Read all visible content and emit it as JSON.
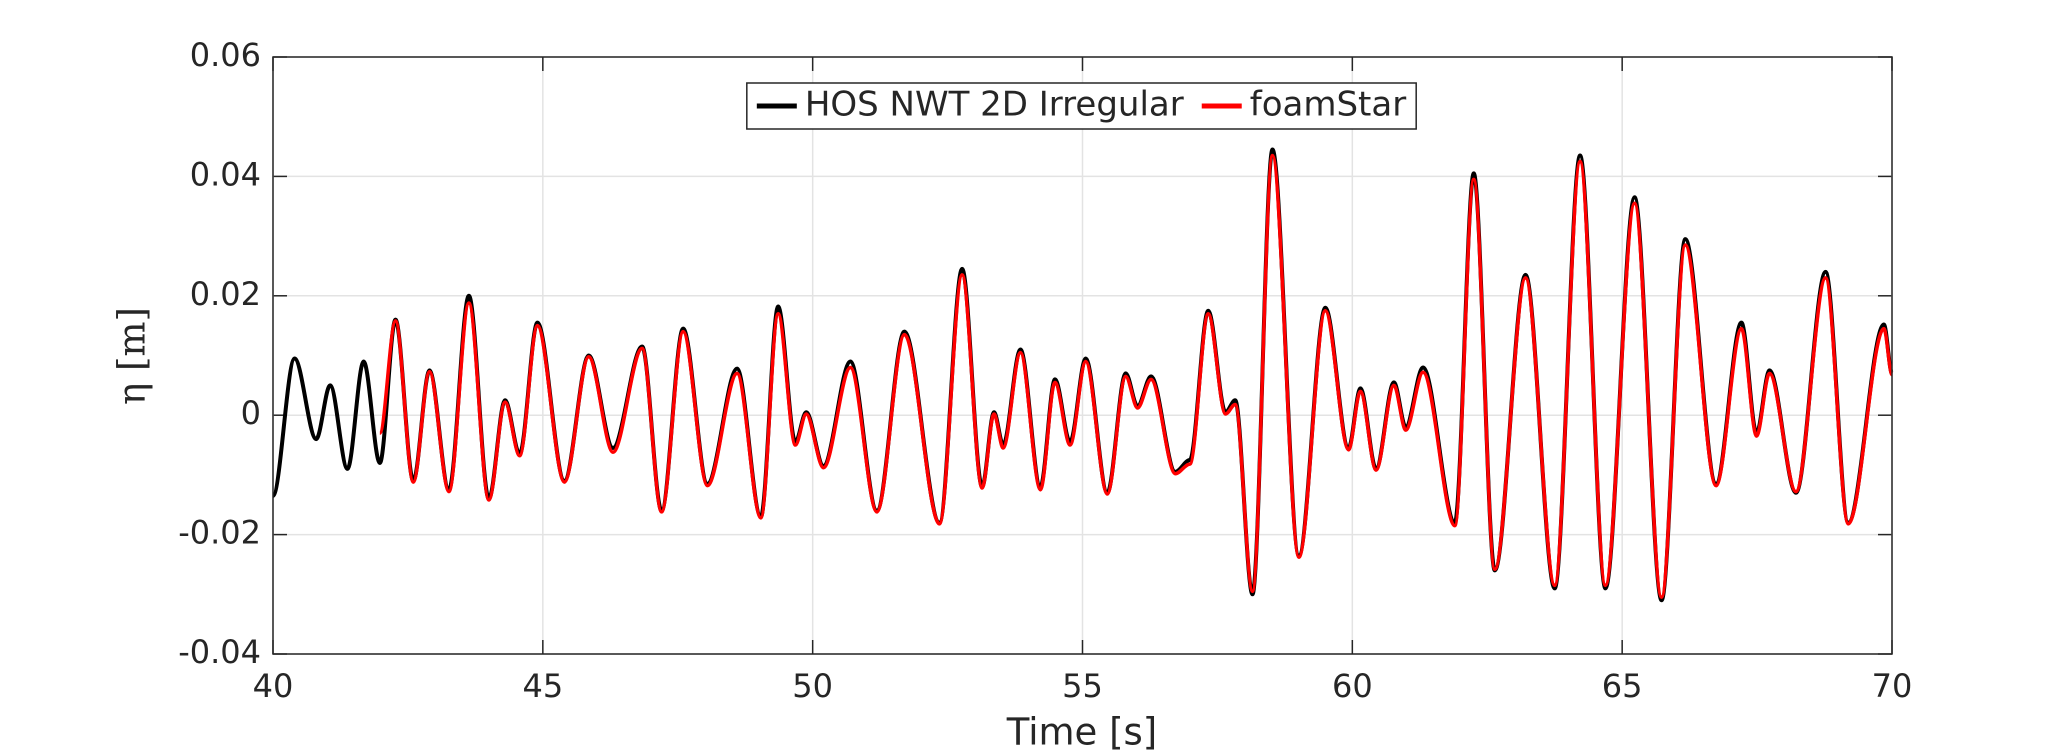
{
  "chart_data": {
    "type": "line",
    "xlabel": "Time [s]",
    "ylabel": "η [m]",
    "x": [
      40,
      40.4,
      40.8,
      41.06,
      41.38,
      41.68,
      41.98,
      42.27,
      42.6,
      42.9,
      43.26,
      43.63,
      44.0,
      44.3,
      44.57,
      44.9,
      45.4,
      45.85,
      46.3,
      46.84,
      47.2,
      47.6,
      48.05,
      48.6,
      49.04,
      49.36,
      49.68,
      49.88,
      50.2,
      50.7,
      51.19,
      51.7,
      52.35,
      52.77,
      53.14,
      53.36,
      53.53,
      53.85,
      54.22,
      54.49,
      54.77,
      55.06,
      55.46,
      55.8,
      56.02,
      56.27,
      56.72,
      56.99,
      57.33,
      57.65,
      57.83,
      58.15,
      58.52,
      59.01,
      59.5,
      59.93,
      60.15,
      60.44,
      60.77,
      60.99,
      61.31,
      61.9,
      62.25,
      62.64,
      63.21,
      63.75,
      64.22,
      64.69,
      65.23,
      65.73,
      66.17,
      66.74,
      67.21,
      67.49,
      67.73,
      68.22,
      68.77,
      69.19,
      69.85,
      70
    ],
    "series": [
      {
        "name": "HOS NWT 2D Irregular",
        "color": "#000000",
        "values": [
          -0.0135,
          0.0095,
          -0.004,
          0.005,
          -0.009,
          0.009,
          -0.008,
          0.016,
          -0.011,
          0.0075,
          -0.0125,
          0.02,
          -0.014,
          0.0025,
          -0.0065,
          0.0155,
          -0.011,
          0.01,
          -0.0055,
          0.0115,
          -0.016,
          0.0145,
          -0.0115,
          0.0078,
          -0.017,
          0.0182,
          -0.0045,
          0.0005,
          -0.0085,
          0.009,
          -0.016,
          0.014,
          -0.018,
          0.0245,
          -0.012,
          0.0005,
          -0.005,
          0.011,
          -0.012,
          0.006,
          -0.0045,
          0.0095,
          -0.013,
          0.007,
          0.0015,
          0.0065,
          -0.0095,
          -0.0075,
          0.0175,
          0.0005,
          0.0025,
          -0.03,
          0.0445,
          -0.0235,
          0.018,
          -0.0055,
          0.0045,
          -0.009,
          0.0055,
          -0.002,
          0.008,
          -0.018,
          0.0405,
          -0.026,
          0.0235,
          -0.029,
          0.0435,
          -0.029,
          0.0365,
          -0.031,
          0.0295,
          -0.0115,
          0.0155,
          -0.003,
          0.0075,
          -0.013,
          0.024,
          -0.018,
          0.0152,
          0.007
        ]
      },
      {
        "name": "foamStar",
        "color": "#ff0000",
        "values": [
          null,
          null,
          null,
          null,
          null,
          null,
          -0.003,
          0.0158,
          -0.0112,
          0.0073,
          -0.0128,
          0.0188,
          -0.0142,
          0.0022,
          -0.0068,
          0.015,
          -0.0112,
          0.0098,
          -0.0062,
          0.0112,
          -0.0162,
          0.014,
          -0.0118,
          0.007,
          -0.0172,
          0.017,
          -0.005,
          0.0002,
          -0.0088,
          0.008,
          -0.0162,
          0.0135,
          -0.0182,
          0.0235,
          -0.0122,
          0.0002,
          -0.0055,
          0.0105,
          -0.0125,
          0.0055,
          -0.005,
          0.009,
          -0.0132,
          0.0065,
          0.0012,
          0.006,
          -0.0098,
          -0.0082,
          0.017,
          0.0002,
          0.0018,
          -0.0295,
          0.0435,
          -0.0238,
          0.0175,
          -0.0058,
          0.004,
          -0.0092,
          0.005,
          -0.0025,
          0.0072,
          -0.0185,
          0.0395,
          -0.0258,
          0.023,
          -0.0285,
          0.0425,
          -0.0285,
          0.0355,
          -0.0305,
          0.0285,
          -0.0118,
          0.0145,
          -0.0035,
          0.007,
          -0.0128,
          0.023,
          -0.0182,
          0.0145,
          0.0068
        ]
      }
    ],
    "xlim": [
      40,
      70
    ],
    "xticks": [
      40,
      45,
      50,
      55,
      60,
      65,
      70
    ],
    "ylim": [
      -0.04,
      0.06
    ],
    "yticks": [
      -0.04,
      -0.02,
      0,
      0.02,
      0.04,
      0.06
    ],
    "grid": true,
    "legend": "north"
  }
}
